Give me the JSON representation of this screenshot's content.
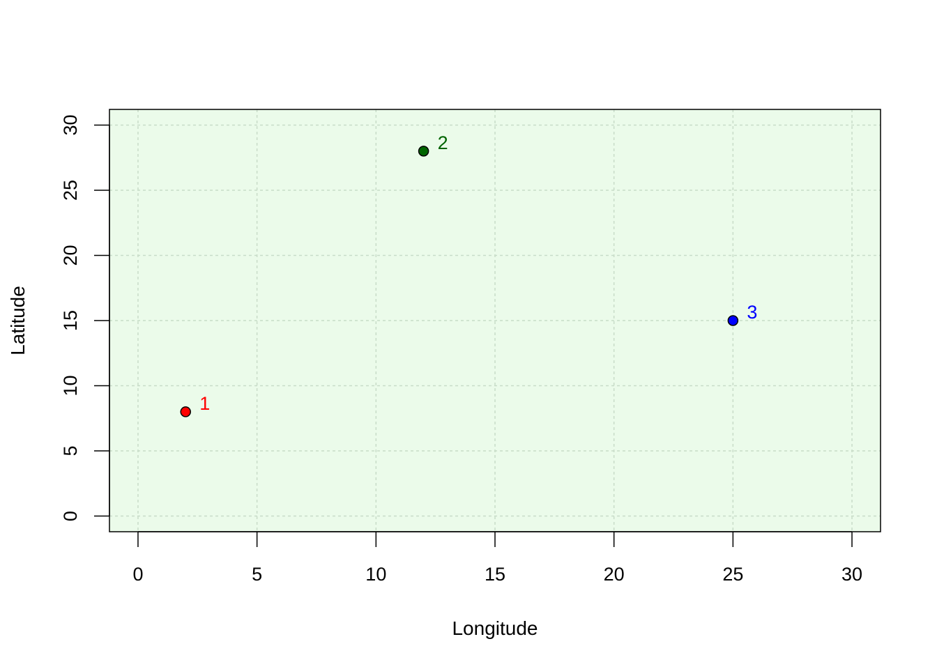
{
  "chart_data": {
    "type": "scatter",
    "xlabel": "Longitude",
    "ylabel": "Latitude",
    "xlim": [
      -1.2,
      31.2
    ],
    "ylim": [
      -1.2,
      31.2
    ],
    "x_ticks": [
      0,
      5,
      10,
      15,
      20,
      25,
      30
    ],
    "y_ticks": [
      0,
      5,
      10,
      15,
      20,
      25,
      30
    ],
    "grid": true,
    "grid_color": "#c8dcc8",
    "plot_background": "#ebfbea",
    "points": [
      {
        "label": "1",
        "x": 2,
        "y": 8,
        "color": "#ff0000",
        "label_color": "#ff0000"
      },
      {
        "label": "2",
        "x": 12,
        "y": 28,
        "color": "#006400",
        "label_color": "#006400"
      },
      {
        "label": "3",
        "x": 25,
        "y": 15,
        "color": "#0000ff",
        "label_color": "#0000ff"
      }
    ]
  }
}
